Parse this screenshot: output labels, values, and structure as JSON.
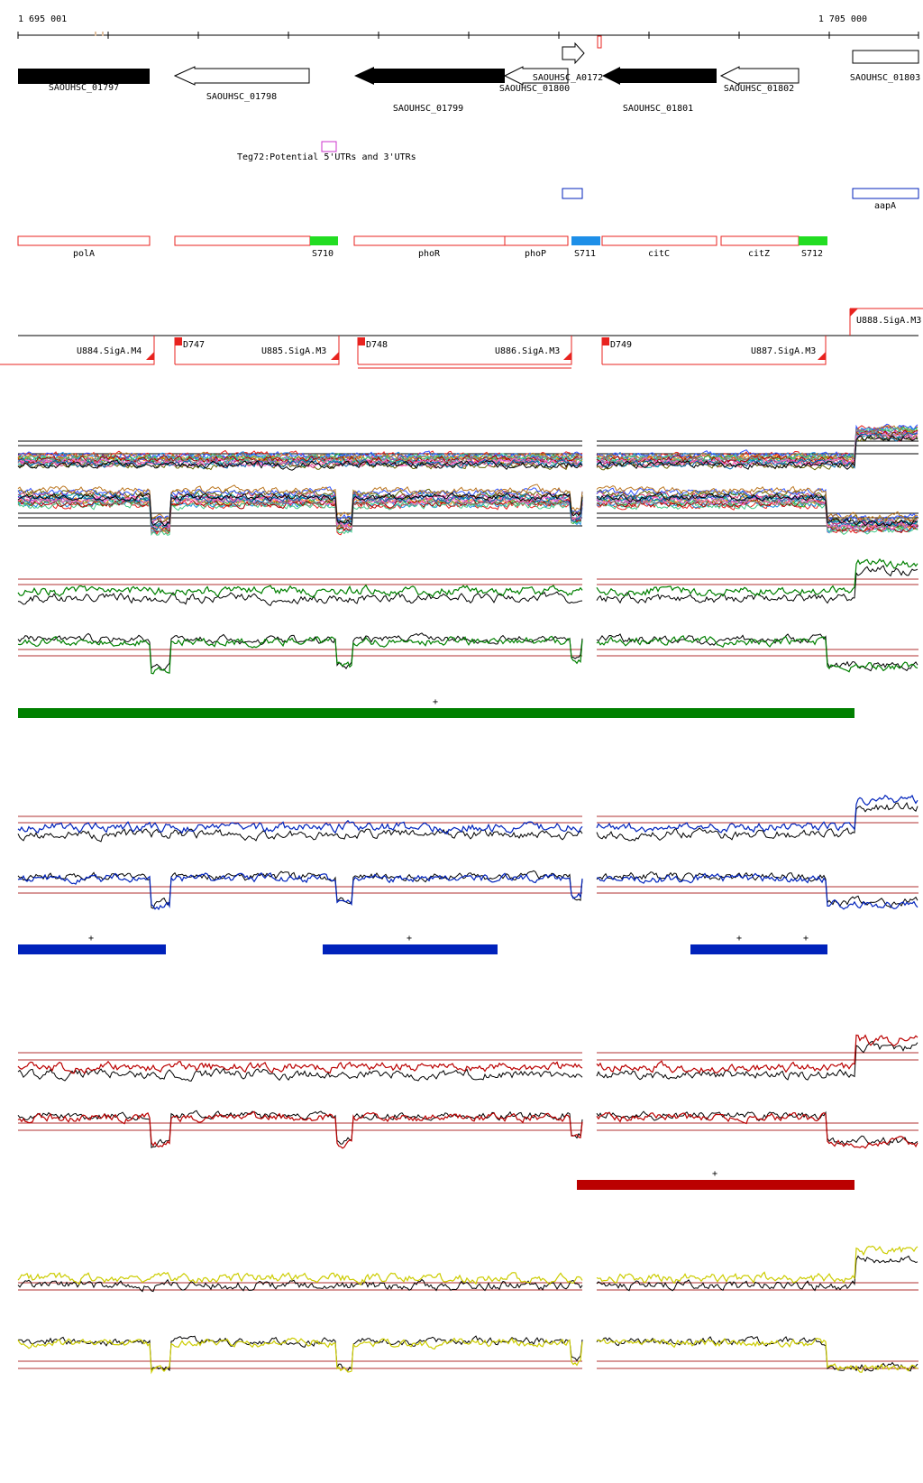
{
  "coordinates": {
    "start_label": "1 695 001",
    "end_label": "1 705 000"
  },
  "genes": [
    {
      "id": "SAOUHSC_01797",
      "strand": "+",
      "filled": true
    },
    {
      "id": "SAOUHSC_01798",
      "strand": "-",
      "filled": false
    },
    {
      "id": "SAOUHSC_01799",
      "strand": "-",
      "filled": true
    },
    {
      "id": "SAOUHSC_01800",
      "strand": "-",
      "filled": false
    },
    {
      "id": "SAOUHSC_A0172",
      "strand": "+",
      "filled": false
    },
    {
      "id": "SAOUHSC_01801",
      "strand": "-",
      "filled": true
    },
    {
      "id": "SAOUHSC_01802",
      "strand": "-",
      "filled": false
    },
    {
      "id": "SAOUHSC_01803",
      "strand": "+",
      "filled": false
    }
  ],
  "utr_annotation": {
    "label": "Teg72:Potential 5'UTRs and 3'UTRs",
    "color": "#cc33cc"
  },
  "blue_features": [
    {
      "label": ""
    },
    {
      "label": "aapA"
    }
  ],
  "operon_features": [
    {
      "label": "polA",
      "kind": "gene"
    },
    {
      "label": "",
      "kind": "gene"
    },
    {
      "label": "S710",
      "kind": "green"
    },
    {
      "label": "phoR",
      "kind": "gene"
    },
    {
      "label": "phoP",
      "kind": "gene"
    },
    {
      "label": "S711",
      "kind": "blue"
    },
    {
      "label": "citC",
      "kind": "gene"
    },
    {
      "label": "citZ",
      "kind": "gene"
    },
    {
      "label": "S712",
      "kind": "green"
    }
  ],
  "promoters": {
    "up": [
      "U884.SigA.M4",
      "U885.SigA.M3",
      "U886.SigA.M3",
      "U887.SigA.M3",
      "U888.SigA.M3"
    ],
    "down": [
      "D747",
      "D748",
      "D749"
    ]
  },
  "colors": {
    "feature_red": "#e8231f",
    "green_box": "#22dd22",
    "blue_box": "#1e8fe8",
    "track_green": "#008000",
    "track_blue": "#0022bb",
    "track_red": "#bb0000",
    "track_yellow": "#cccc00",
    "threshold_line": "#b03030"
  },
  "expression_panels": [
    {
      "name": "all-conditions",
      "color": "#000000",
      "segment_marks": []
    },
    {
      "name": "green",
      "color": "#008000",
      "segment_marks": [
        "+"
      ]
    },
    {
      "name": "blue",
      "color": "#0022bb",
      "segment_marks": [
        "+",
        "+",
        "+",
        "+"
      ]
    },
    {
      "name": "red",
      "color": "#bb0000",
      "segment_marks": [
        "+"
      ]
    },
    {
      "name": "yellow",
      "color": "#cccc00",
      "segment_marks": []
    }
  ]
}
